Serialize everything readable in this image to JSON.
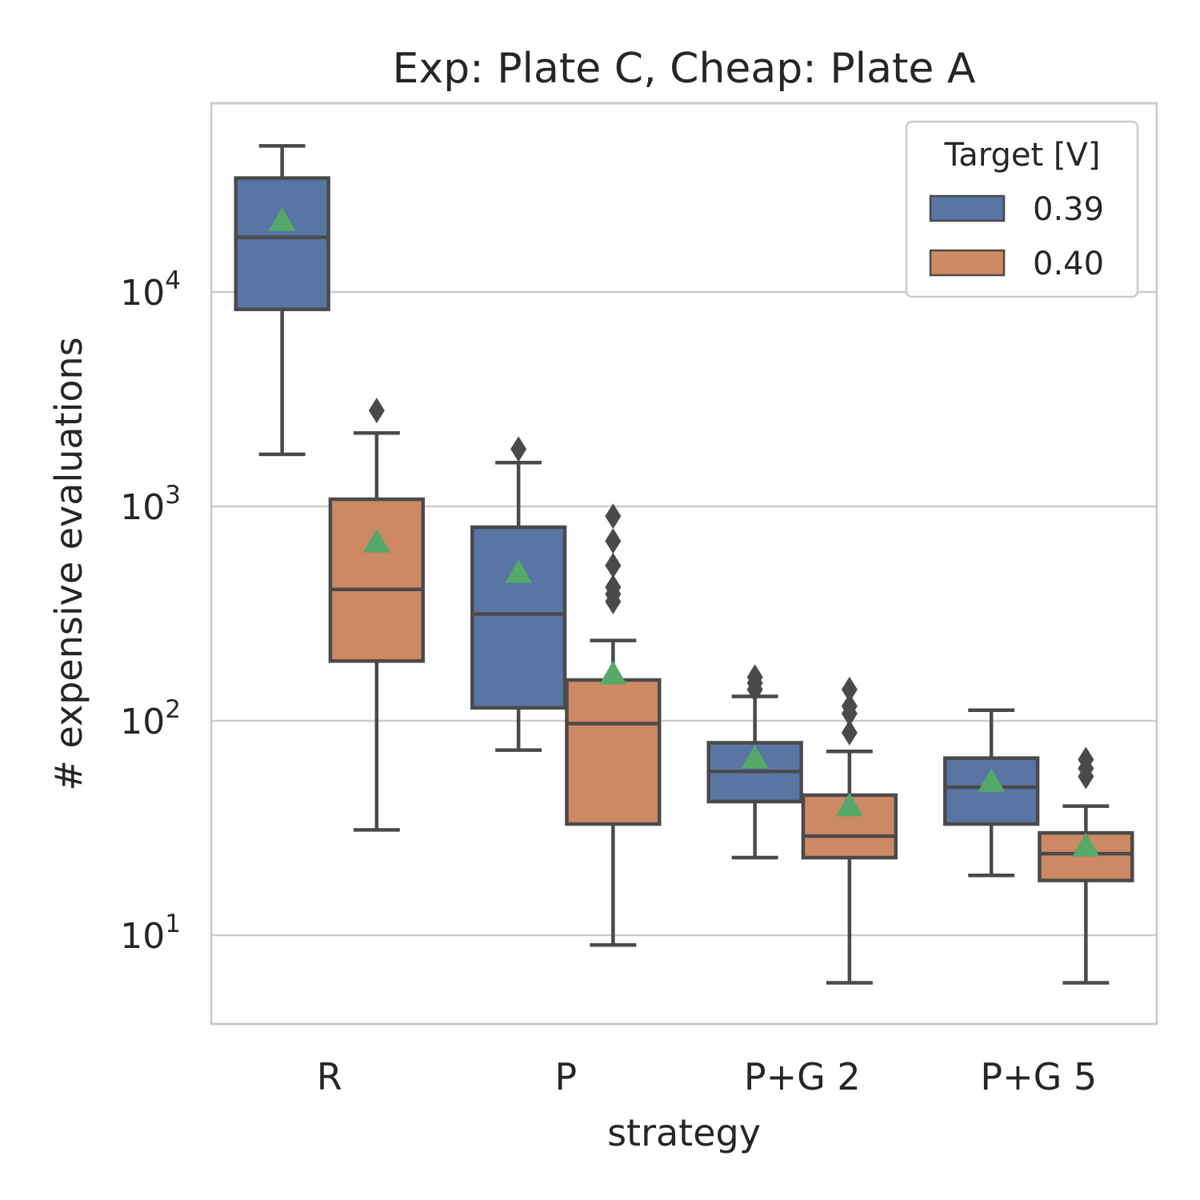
{
  "chart_data": {
    "type": "box",
    "title": "Exp: Plate C, Cheap: Plate A",
    "xlabel": "strategy",
    "ylabel": "# expensive evaluations",
    "yscale": "log",
    "ylim": [
      4,
      70000
    ],
    "grid": true,
    "categories": [
      "R",
      "P",
      "P+G 2",
      "P+G 5"
    ],
    "yticks": [
      {
        "value": 10,
        "base": "10",
        "exp": "1"
      },
      {
        "value": 100,
        "base": "10",
        "exp": "2"
      },
      {
        "value": 1000,
        "base": "10",
        "exp": "3"
      },
      {
        "value": 10000,
        "base": "10",
        "exp": "4"
      }
    ],
    "legend": {
      "title": "Target [V]",
      "position": "top-right",
      "entries": [
        {
          "label": "0.39",
          "color": "#5875a4"
        },
        {
          "label": "0.40",
          "color": "#cc8963"
        }
      ]
    },
    "colors": {
      "edge": "#4a4a4a",
      "mean_marker": "#55a868",
      "grid": "#cccccc"
    },
    "series": [
      {
        "name": "0.39",
        "color": "#5875a4",
        "boxes": [
          {
            "category": "R",
            "whislo": 1750,
            "q1": 8300,
            "median": 18000,
            "q3": 34000,
            "whishi": 48000,
            "mean": 21500,
            "fliers": []
          },
          {
            "category": "P",
            "whislo": 73,
            "q1": 115,
            "median": 315,
            "q3": 800,
            "whishi": 1600,
            "mean": 490,
            "fliers": [
              1850
            ]
          },
          {
            "category": "P+G 2",
            "whislo": 23,
            "q1": 42,
            "median": 58,
            "q3": 79,
            "whishi": 130,
            "mean": 67,
            "fliers": [
              140,
              150,
              160
            ]
          },
          {
            "category": "P+G 5",
            "whislo": 19,
            "q1": 33,
            "median": 49,
            "q3": 67,
            "whishi": 112,
            "mean": 52,
            "fliers": []
          }
        ]
      },
      {
        "name": "0.40",
        "color": "#cc8963",
        "boxes": [
          {
            "category": "R",
            "whislo": 31,
            "q1": 190,
            "median": 410,
            "q3": 1080,
            "whishi": 2200,
            "mean": 680,
            "fliers": [
              2800
            ]
          },
          {
            "category": "P",
            "whislo": 9,
            "q1": 33,
            "median": 97,
            "q3": 155,
            "whishi": 237,
            "mean": 165,
            "fliers": [
              360,
              390,
              420,
              530,
              690,
              900
            ]
          },
          {
            "category": "P+G 2",
            "whislo": 6,
            "q1": 23,
            "median": 29,
            "q3": 45,
            "whishi": 72,
            "mean": 40,
            "fliers": [
              88,
              108,
              117,
              140
            ]
          },
          {
            "category": "P+G 5",
            "whislo": 6,
            "q1": 18,
            "median": 24,
            "q3": 30,
            "whishi": 40,
            "mean": 26,
            "fliers": [
              55,
              60,
              66
            ]
          }
        ]
      }
    ]
  }
}
